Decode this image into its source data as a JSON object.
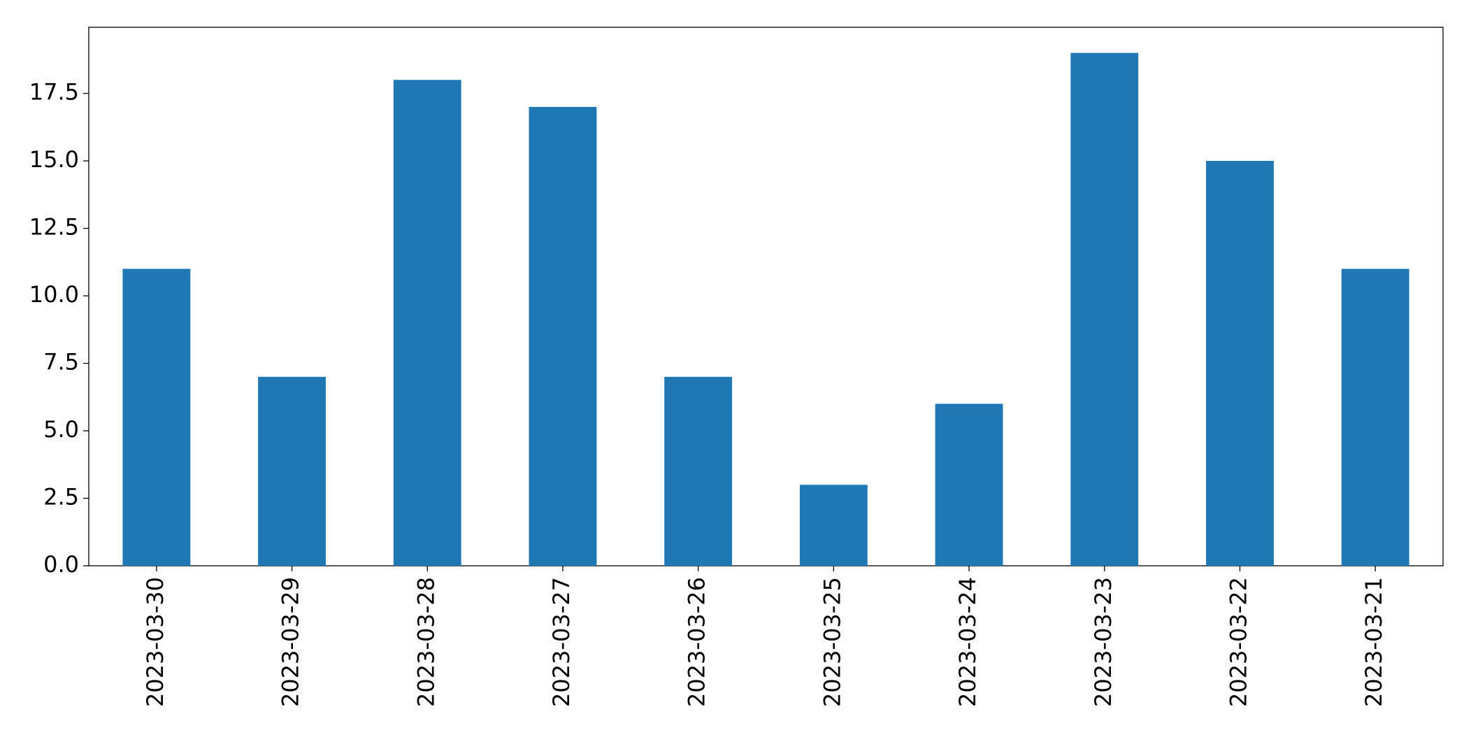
{
  "chart_data": {
    "type": "bar",
    "categories": [
      "2023-03-30",
      "2023-03-29",
      "2023-03-28",
      "2023-03-27",
      "2023-03-26",
      "2023-03-25",
      "2023-03-24",
      "2023-03-23",
      "2023-03-22",
      "2023-03-21"
    ],
    "values": [
      11,
      7,
      18,
      17,
      7,
      3,
      6,
      19,
      15,
      11
    ],
    "color": "#1f77b4",
    "ylim": [
      0,
      19.95
    ],
    "yticks": [
      {
        "value": 0,
        "label": "0.0"
      },
      2.5,
      {
        "value": 5,
        "label": "5.0"
      },
      7.5,
      {
        "value": 10,
        "label": "10.0"
      },
      12.5,
      {
        "value": 15,
        "label": "15.0"
      },
      17.5
    ],
    "grid": false
  }
}
